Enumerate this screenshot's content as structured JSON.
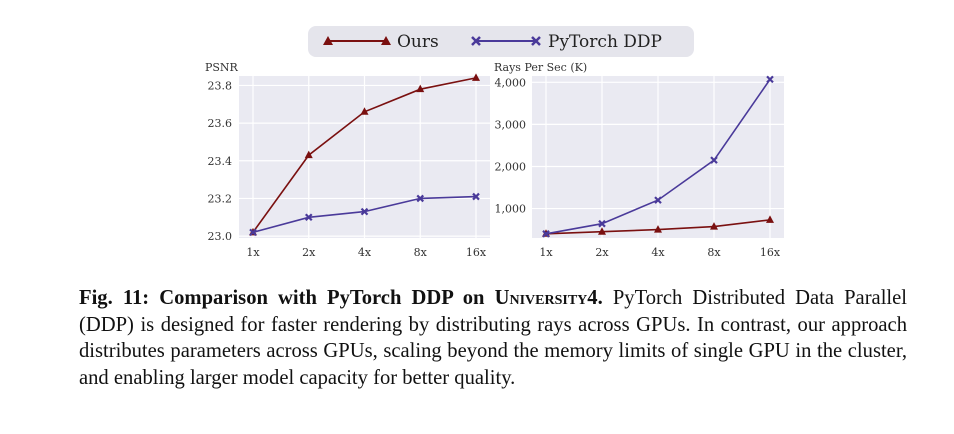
{
  "chart_data": [
    {
      "type": "line",
      "title": "",
      "ylabel": "PSNR",
      "xlabel": "",
      "categories": [
        "1x",
        "2x",
        "4x",
        "8x",
        "16x"
      ],
      "ylim": [
        22.99,
        23.85
      ],
      "yticks": [
        23.0,
        23.2,
        23.4,
        23.6,
        23.8
      ],
      "ytick_labels": [
        "23.0",
        "23.2",
        "23.4",
        "23.6",
        "23.8"
      ],
      "grid": true,
      "series": [
        {
          "name": "Ours",
          "values": [
            23.02,
            23.43,
            23.66,
            23.78,
            23.84
          ],
          "color": "#7a1010",
          "marker": "triangle"
        },
        {
          "name": "PyTorch DDP",
          "values": [
            23.02,
            23.1,
            23.13,
            23.2,
            23.21
          ],
          "color": "#4a3a9a",
          "marker": "x"
        }
      ]
    },
    {
      "type": "line",
      "title": "",
      "ylabel": "Rays Per Sec (K)",
      "xlabel": "",
      "categories": [
        "1x",
        "2x",
        "4x",
        "8x",
        "16x"
      ],
      "ylim": [
        300,
        4150
      ],
      "yticks": [
        1000,
        2000,
        3000,
        4000
      ],
      "ytick_labels": [
        "1,000",
        "2,000",
        "3,000",
        "4,000"
      ],
      "grid": true,
      "series": [
        {
          "name": "Ours",
          "values": [
            400,
            450,
            500,
            570,
            730
          ],
          "color": "#7a1010",
          "marker": "triangle"
        },
        {
          "name": "PyTorch DDP",
          "values": [
            400,
            640,
            1200,
            2150,
            4070
          ],
          "color": "#4a3a9a",
          "marker": "x"
        }
      ]
    }
  ],
  "legend": {
    "placement": "top-center",
    "entries": [
      {
        "label": "Ours",
        "color": "#7a1010",
        "marker": "triangle"
      },
      {
        "label": "PyTorch DDP",
        "color": "#4a3a9a",
        "marker": "x"
      }
    ]
  },
  "caption": {
    "fig_label": "Fig. 11:",
    "bold_text": "Comparison with PyTorch DDP on",
    "dataset": "University4.",
    "body": "PyTorch Distributed Data Parallel (DDP) is designed for faster rendering by distributing rays across GPUs. In contrast, our approach distributes parameters across GPUs, scaling beyond the memory limits of single GPU in the cluster, and enabling larger model capacity for better quality."
  },
  "colors": {
    "plot_bg": "#eaeaf2",
    "grid": "#ffffff",
    "legend_bg": "#e5e5ec"
  }
}
